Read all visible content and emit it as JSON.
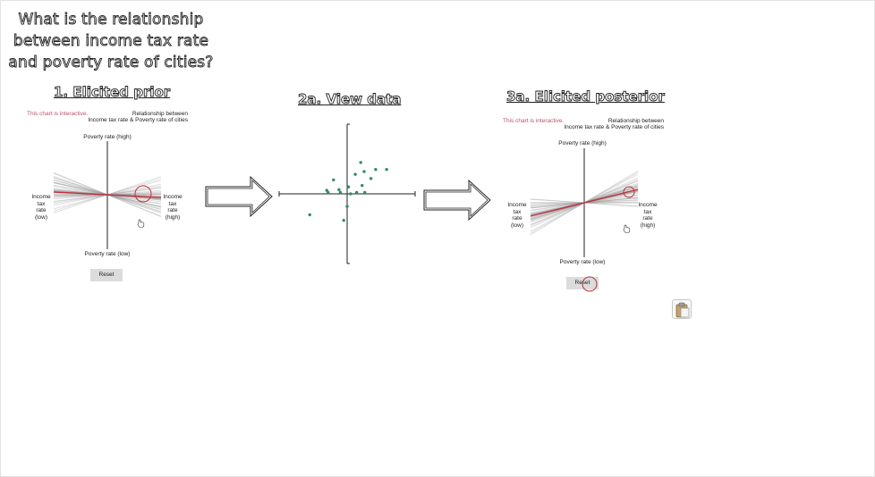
{
  "question": "What is the relationship between income tax rate and poverty rate of cities?",
  "panels": {
    "prior": {
      "heading": "1. Elicited prior",
      "interactive_note": "This chart is interactive.",
      "relationship_line1": "Relationship between",
      "relationship_line2": "Income tax rate & Poverty rate of cities",
      "y_high": "Poverty rate (high)",
      "y_low": "Poverty rate (low)",
      "x_low_lines": [
        "Income",
        "tax",
        "rate",
        "(low)"
      ],
      "x_high_lines": [
        "Income",
        "tax",
        "rate",
        "(high)"
      ],
      "reset_label": "Reset"
    },
    "data": {
      "heading": "2a. View data"
    },
    "posterior": {
      "heading": "3a. Elicited posterior",
      "interactive_note": "This chart is interactive.",
      "relationship_line1": "Relationship between",
      "relationship_line2": "Income tax rate & Poverty rate of cities",
      "y_high": "Poverty rate (high)",
      "y_low": "Poverty rate (low)",
      "x_low_lines": [
        "Income",
        "tax",
        "rate",
        "(low)"
      ],
      "x_high_lines": [
        "Income",
        "tax",
        "rate",
        "(high)"
      ],
      "reset_label": "Reset"
    }
  },
  "colors": {
    "accent_red": "#c0313f",
    "interactive_text": "#c0506a",
    "dot_green": "#2e8b6e",
    "fan_gray": "#999999"
  },
  "icons": {
    "arrow": "right-arrow-icon",
    "cursor": "hand-cursor-icon",
    "clipboard": "clipboard-icon"
  },
  "chart_data": {
    "type": "scatter",
    "x": [
      -0.55,
      -0.3,
      -0.28,
      -0.2,
      -0.12,
      -0.1,
      -0.05,
      0.0,
      0.02,
      0.05,
      0.12,
      0.14,
      0.2,
      0.22,
      0.25,
      0.26,
      0.35,
      0.42,
      0.58
    ],
    "y": [
      -0.3,
      0.05,
      0.02,
      0.2,
      0.06,
      0.02,
      -0.38,
      -0.18,
      0.1,
      0.0,
      0.28,
      0.02,
      0.45,
      0.12,
      0.32,
      0.02,
      0.22,
      0.35,
      0.35
    ],
    "xlim": [
      -1,
      1
    ],
    "ylim": [
      -1,
      1
    ],
    "grid": false
  },
  "prior_fan": {
    "mean_slope": -0.05,
    "line_count": 40,
    "slope_spread": 0.9
  },
  "posterior_fan": {
    "mean_slope": 0.25,
    "line_count": 40,
    "slope_spread": 0.8
  }
}
